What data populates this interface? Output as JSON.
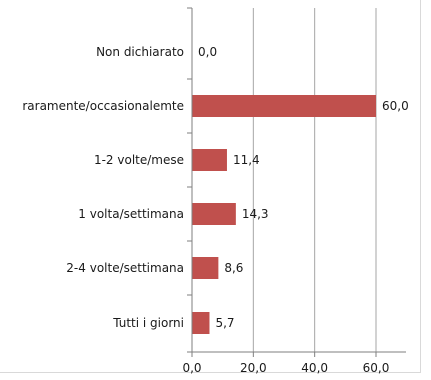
{
  "chart_data": {
    "type": "bar",
    "orientation": "horizontal",
    "categories": [
      "Non dichiarato",
      "raramente/occasionalemte",
      "1-2 volte/mese",
      "1 volta/settimana",
      "2-4 volte/settimana",
      "Tutti i giorni"
    ],
    "values": [
      0.0,
      60.0,
      11.4,
      14.3,
      8.6,
      5.7
    ],
    "value_labels": [
      "0,0",
      "60,0",
      "11,4",
      "14,3",
      "8,6",
      "5,7"
    ],
    "xlim": [
      0,
      80
    ],
    "xticks": [
      0,
      20,
      40,
      60
    ],
    "xtick_labels": [
      "0,0",
      "20,0",
      "40,0",
      "60,0"
    ],
    "grid": true,
    "bar_color": "#c0504d"
  }
}
